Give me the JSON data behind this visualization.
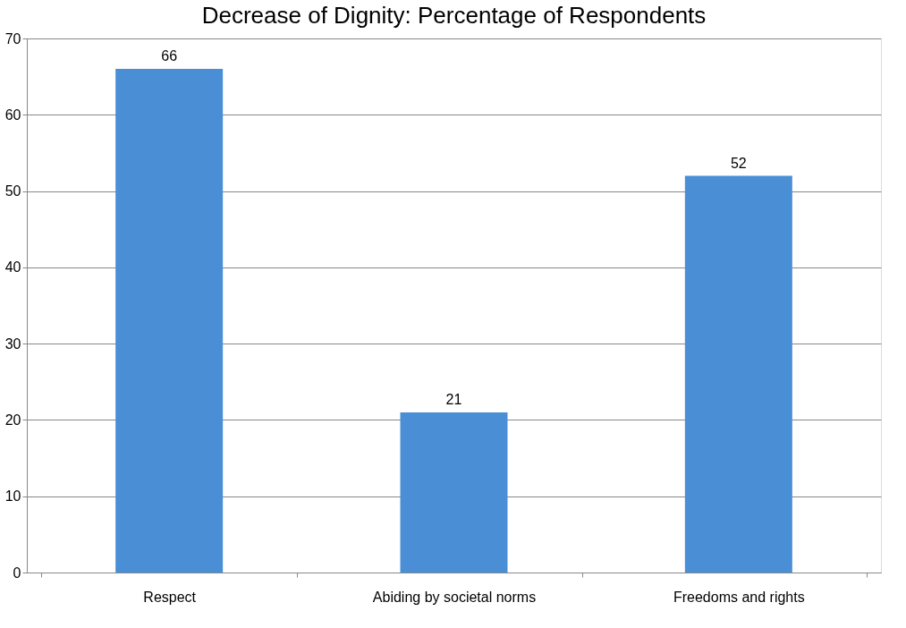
{
  "chart_data": {
    "type": "bar",
    "title": "Decrease of Dignity: Percentage of Respondents",
    "categories": [
      "Respect",
      "Abiding by societal norms",
      "Freedoms and rights"
    ],
    "values": [
      66,
      21,
      52
    ],
    "color": "#4a8fd6",
    "ylim": [
      0,
      70
    ],
    "yticks": [
      0,
      10,
      20,
      30,
      40,
      50,
      60,
      70
    ],
    "grid": "y",
    "data_labels": true
  }
}
